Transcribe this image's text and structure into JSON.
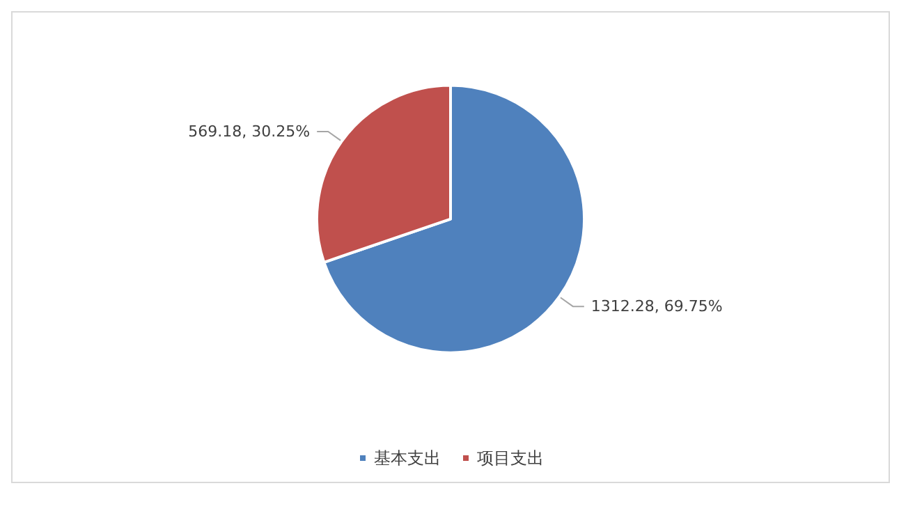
{
  "chart_data": {
    "type": "pie",
    "categories": [
      "基本支出",
      "项目支出"
    ],
    "values": [
      1312.28,
      569.18
    ],
    "colors": [
      "#4f81bd",
      "#c0504d"
    ],
    "value_labels": [
      "1312.28, 69.75%",
      "569.18, 30.25%"
    ],
    "legend": "bottom"
  }
}
